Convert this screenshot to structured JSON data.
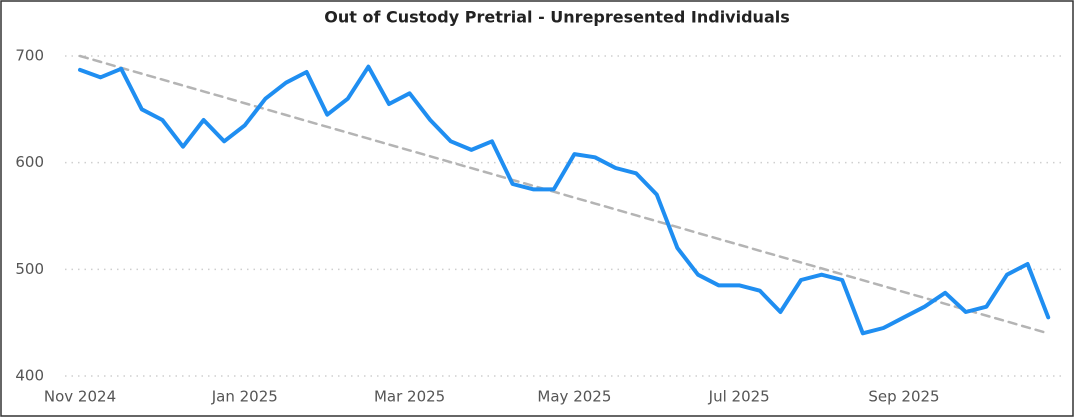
{
  "chart_data": {
    "type": "line",
    "title": "Out of Custody Pretrial - Unrepresented Individuals",
    "categories": [
      "Nov 2024",
      null,
      null,
      null,
      null,
      null,
      null,
      null,
      "Jan 2025",
      null,
      null,
      null,
      null,
      null,
      null,
      null,
      "Mar 2025",
      null,
      null,
      null,
      null,
      null,
      null,
      null,
      "May 2025",
      null,
      null,
      null,
      null,
      null,
      null,
      null,
      "Jul 2025",
      null,
      null,
      null,
      null,
      null,
      null,
      null,
      "Sep 2025",
      null,
      null,
      null,
      null,
      null,
      null,
      null
    ],
    "series": [
      {
        "color": "#1f8ef1",
        "values": [
          687,
          680,
          688,
          650,
          640,
          615,
          640,
          620,
          635,
          660,
          675,
          685,
          645,
          660,
          690,
          655,
          665,
          640,
          620,
          612,
          620,
          580,
          575,
          575,
          608,
          605,
          595,
          590,
          570,
          520,
          495,
          485,
          485,
          480,
          460,
          490,
          495,
          490,
          440,
          445,
          455,
          465,
          478,
          460,
          465,
          495,
          505,
          455
        ]
      },
      {
        "color": "#b4b4b4",
        "dashed": true,
        "values": [
          700,
          694.5,
          688.9,
          683.4,
          677.9,
          672.3,
          666.8,
          661.3,
          655.7,
          650.2,
          644.7,
          639.1,
          633.6,
          628.1,
          622.6,
          617.0,
          611.5,
          606.0,
          600.4,
          594.9,
          589.4,
          583.8,
          578.3,
          572.8,
          567.2,
          561.7,
          556.2,
          550.6,
          545.1,
          539.6,
          534.0,
          528.5,
          523.0,
          517.4,
          511.9,
          506.4,
          500.9,
          495.3,
          489.8,
          484.3,
          478.7,
          473.2,
          467.7,
          462.1,
          456.6,
          451.1,
          445.5,
          440.0
        ]
      }
    ],
    "ylim": [
      400,
      700
    ],
    "yticks": [
      400,
      500,
      600,
      700
    ],
    "grid": true
  }
}
